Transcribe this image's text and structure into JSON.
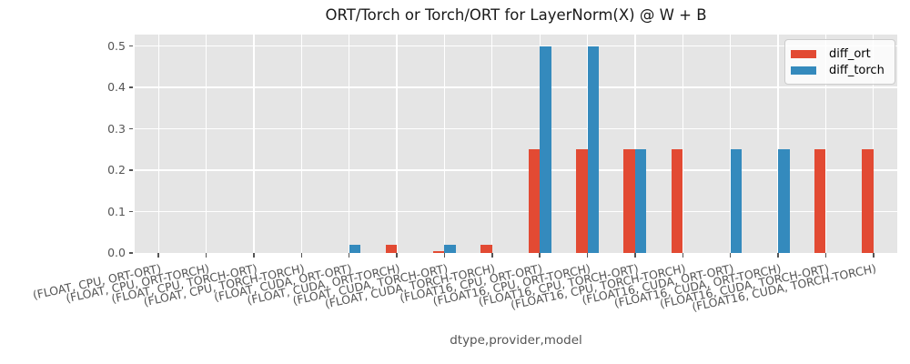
{
  "chart_data": {
    "type": "bar",
    "title": "ORT/Torch or Torch/ORT for LayerNorm(X) @ W + B",
    "xlabel": "dtype,provider,model",
    "ylabel": "",
    "ylim": [
      0,
      0.527
    ],
    "yticks": [
      0.0,
      0.1,
      0.2,
      0.3,
      0.4,
      0.5
    ],
    "grid": true,
    "legend_position": "upper right",
    "plot_bg": "#e5e5e5",
    "grid_color": "#ffffff",
    "categories": [
      "(FLOAT, CPU, ORT-ORT)",
      "(FLOAT, CPU, ORT-TORCH)",
      "(FLOAT, CPU, TORCH-ORT)",
      "(FLOAT, CPU, TORCH-TORCH)",
      "(FLOAT, CUDA, ORT-ORT)",
      "(FLOAT, CUDA, ORT-TORCH)",
      "(FLOAT, CUDA, TORCH-ORT)",
      "(FLOAT, CUDA, TORCH-TORCH)",
      "(FLOAT16, CPU, ORT-ORT)",
      "(FLOAT16, CPU, ORT-TORCH)",
      "(FLOAT16, CPU, TORCH-ORT)",
      "(FLOAT16, CPU, TORCH-TORCH)",
      "(FLOAT16, CUDA, ORT-ORT)",
      "(FLOAT16, CUDA, ORT-TORCH)",
      "(FLOAT16, CUDA, TORCH-ORT)",
      "(FLOAT16, CUDA, TORCH-TORCH)"
    ],
    "series": [
      {
        "name": "diff_ort",
        "color": "#e24a33",
        "values": [
          0,
          0,
          0,
          0,
          0,
          0.02,
          0.005,
          0.02,
          0.25,
          0.25,
          0.25,
          0.25,
          0,
          0,
          0.25,
          0.25
        ]
      },
      {
        "name": "diff_torch",
        "color": "#348abd",
        "values": [
          0,
          0,
          0,
          0,
          0.02,
          0,
          0.02,
          0,
          0.5,
          0.5,
          0.25,
          0,
          0.25,
          0.25,
          0,
          0
        ]
      }
    ]
  }
}
